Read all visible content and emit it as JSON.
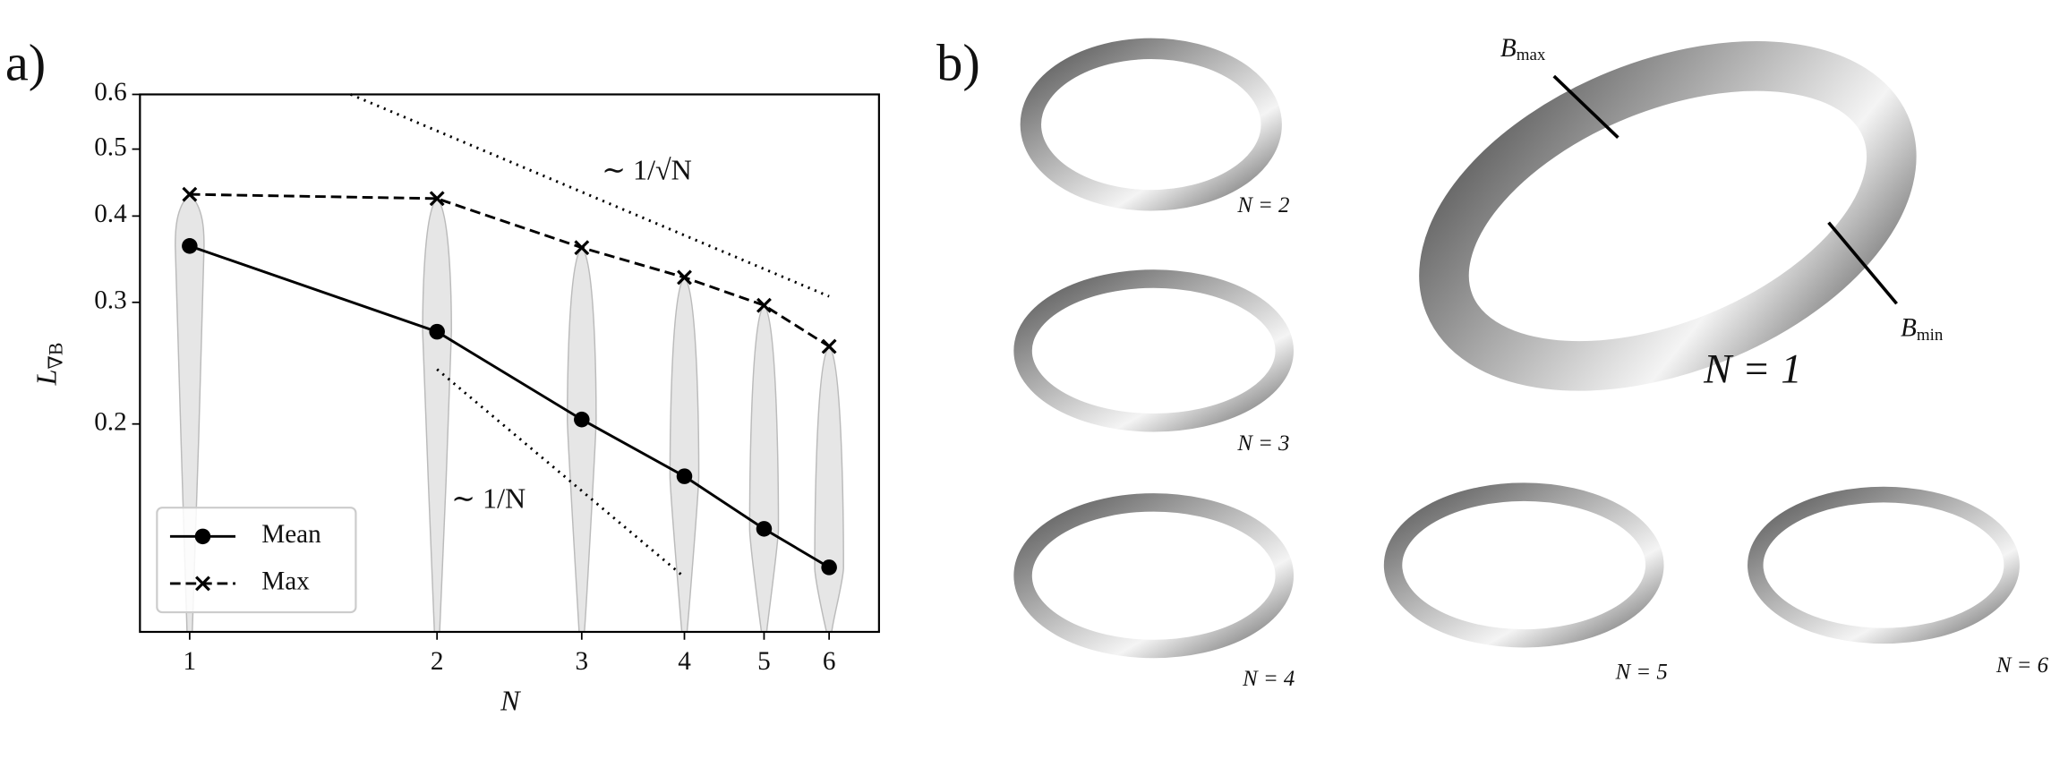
{
  "chart_data": {
    "type": "line",
    "panel_label": "a)",
    "x_label": "N",
    "y_label": {
      "base": "L",
      "sub": "∇B"
    },
    "xscale": "log",
    "yscale": "log",
    "xlim": [
      0.87,
      6.9
    ],
    "ylim": [
      0.1,
      0.6
    ],
    "xticks": [
      1,
      2,
      3,
      4,
      5,
      6
    ],
    "yticks": [
      0.2,
      0.3,
      0.4,
      0.5,
      0.6
    ],
    "x": [
      1,
      2,
      3,
      4,
      5,
      6
    ],
    "series": [
      {
        "name": "Mean",
        "color": "#000000",
        "dash": "solid",
        "marker": "circle",
        "values": [
          0.362,
          0.272,
          0.203,
          0.168,
          0.141,
          0.124
        ]
      },
      {
        "name": "Max",
        "color": "#000000",
        "dash": "dashed",
        "marker": "x",
        "values": [
          0.43,
          0.424,
          0.36,
          0.326,
          0.297,
          0.259
        ]
      }
    ],
    "violin_color": "#e6e6e6",
    "guides": [
      {
        "label": "∼ 1/√N",
        "x": [
          1.57,
          6
        ],
        "y": [
          0.6,
          0.306
        ]
      },
      {
        "label": "∼ 1/N",
        "x": [
          2,
          4
        ],
        "y": [
          0.24,
          0.12
        ]
      }
    ],
    "legend": "lower left"
  },
  "panel_b": {
    "label": "b)",
    "shapes": [
      {
        "label": "N = 1"
      },
      {
        "label": "N = 2"
      },
      {
        "label": "N = 3"
      },
      {
        "label": "N = 4"
      },
      {
        "label": "N = 5"
      },
      {
        "label": "N = 6"
      }
    ],
    "annotations": [
      {
        "base": "B",
        "sub": "max"
      },
      {
        "base": "B",
        "sub": "min"
      }
    ]
  }
}
